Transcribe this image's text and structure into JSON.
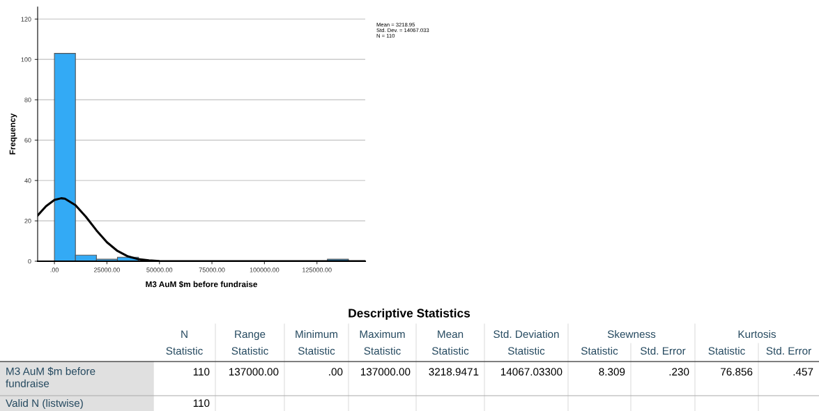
{
  "chart_data": [
    {
      "type": "histogram",
      "xlabel": "M3 AuM $m before fundraise",
      "ylabel": "Frequency",
      "bins": [
        0,
        10000,
        20000,
        30000,
        40000,
        50000,
        60000,
        70000,
        80000,
        90000,
        100000,
        110000,
        120000,
        130000,
        140000
      ],
      "values": [
        103,
        3,
        1,
        2,
        0,
        0,
        0,
        0,
        0,
        0,
        0,
        0,
        0,
        1
      ],
      "color": "#33aaf5",
      "series": [
        {
          "type": "line",
          "color": "#000000",
          "x": [
            -8000,
            -4000,
            0,
            3219,
            5000,
            10000,
            15000,
            20000,
            25000,
            30000,
            35000,
            40000,
            45000,
            50000,
            60000,
            148000
          ],
          "values": [
            22.7,
            27.3,
            30.4,
            31.2,
            31.0,
            27.8,
            22.0,
            15.3,
            9.4,
            5.1,
            2.4,
            1.0,
            0.4,
            0.1,
            0,
            0
          ]
        }
      ],
      "xlim": [
        -8000,
        148000
      ],
      "ylim": [
        0,
        126
      ],
      "xticks": [
        {
          "value": 0,
          "label": ".00"
        },
        {
          "value": 25000,
          "label": "25000.00"
        },
        {
          "value": 50000,
          "label": "50000.00"
        },
        {
          "value": 75000,
          "label": "75000.00"
        },
        {
          "value": 100000,
          "label": "100000.00"
        },
        {
          "value": 125000,
          "label": "125000.00"
        }
      ],
      "yticks": [
        0,
        20,
        40,
        60,
        80,
        100,
        120
      ],
      "grid": "y",
      "annotations": [
        "Mean = 3218.95",
        "Std. Dev. = 14067.033",
        "N = 110"
      ]
    },
    {
      "type": "other",
      "title": "Descriptive Statistics",
      "annotations": [
        "N",
        "Range",
        "Minimum",
        "Maximum",
        "Mean",
        "Std. Deviation",
        "Skewness",
        "Kurtosis",
        "Statistic",
        "Statistic",
        "Statistic",
        "Statistic",
        "Statistic",
        "Statistic",
        "Statistic",
        "Std. Error",
        "Statistic",
        "Std. Error",
        "M3 AuM $m before\nfundraise",
        "110",
        "137000.00",
        ".00",
        "137000.00",
        "3218.9471",
        "14067.03300",
        "8.309",
        ".230",
        "76.856",
        ".457",
        "Valid N (listwise)",
        "110"
      ]
    }
  ]
}
